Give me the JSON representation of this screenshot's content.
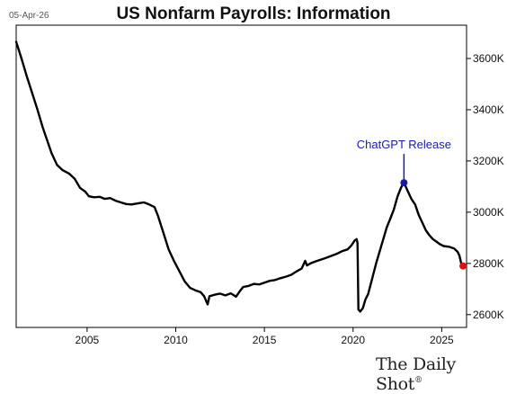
{
  "header": {
    "date": "05-Apr-26",
    "title": "US Nonfarm Payrolls: Information"
  },
  "footer": {
    "brand": "The Daily Shot",
    "brand_mark": "®"
  },
  "colors": {
    "line": "#000000",
    "annotation": "#1a1aa8",
    "last_point": "#e01010",
    "frame": "#000000",
    "background": "#ffffff"
  },
  "chart_data": {
    "type": "line",
    "title": "US Nonfarm Payrolls: Information",
    "xlabel": "",
    "ylabel": "",
    "x_ticks": [
      2005,
      2010,
      2015,
      2020,
      2025
    ],
    "y_ticks": [
      {
        "value": 2600,
        "label": "2600K"
      },
      {
        "value": 2800,
        "label": "2800K"
      },
      {
        "value": 3000,
        "label": "3000K"
      },
      {
        "value": 3200,
        "label": "3200K"
      },
      {
        "value": 3400,
        "label": "3400K"
      },
      {
        "value": 3600,
        "label": "3600K"
      }
    ],
    "xlim": [
      2001.0,
      2026.4
    ],
    "ylim": [
      2550,
      3730
    ],
    "y_axis_side": "right",
    "grid": false,
    "series": [
      {
        "points": [
          [
            2001.0,
            3665
          ],
          [
            2001.3,
            3600
          ],
          [
            2001.6,
            3530
          ],
          [
            2001.9,
            3465
          ],
          [
            2002.2,
            3400
          ],
          [
            2002.5,
            3330
          ],
          [
            2002.8,
            3270
          ],
          [
            2003.0,
            3230
          ],
          [
            2003.3,
            3185
          ],
          [
            2003.6,
            3165
          ],
          [
            2004.0,
            3150
          ],
          [
            2004.3,
            3130
          ],
          [
            2004.6,
            3095
          ],
          [
            2004.9,
            3080
          ],
          [
            2005.1,
            3062
          ],
          [
            2005.4,
            3058
          ],
          [
            2005.7,
            3060
          ],
          [
            2006.0,
            3052
          ],
          [
            2006.3,
            3055
          ],
          [
            2006.6,
            3045
          ],
          [
            2006.9,
            3038
          ],
          [
            2007.2,
            3032
          ],
          [
            2007.5,
            3030
          ],
          [
            2007.9,
            3035
          ],
          [
            2008.2,
            3038
          ],
          [
            2008.5,
            3030
          ],
          [
            2008.8,
            3020
          ],
          [
            2009.0,
            2985
          ],
          [
            2009.3,
            2920
          ],
          [
            2009.6,
            2855
          ],
          [
            2009.9,
            2810
          ],
          [
            2010.2,
            2770
          ],
          [
            2010.5,
            2730
          ],
          [
            2010.8,
            2705
          ],
          [
            2011.1,
            2695
          ],
          [
            2011.4,
            2688
          ],
          [
            2011.6,
            2672
          ],
          [
            2011.7,
            2655
          ],
          [
            2011.8,
            2640
          ],
          [
            2011.9,
            2672
          ],
          [
            2012.2,
            2678
          ],
          [
            2012.5,
            2682
          ],
          [
            2012.8,
            2675
          ],
          [
            2013.1,
            2683
          ],
          [
            2013.4,
            2670
          ],
          [
            2013.6,
            2690
          ],
          [
            2013.8,
            2708
          ],
          [
            2014.1,
            2712
          ],
          [
            2014.4,
            2720
          ],
          [
            2014.7,
            2718
          ],
          [
            2015.0,
            2725
          ],
          [
            2015.3,
            2732
          ],
          [
            2015.6,
            2735
          ],
          [
            2015.9,
            2742
          ],
          [
            2016.2,
            2748
          ],
          [
            2016.5,
            2755
          ],
          [
            2016.8,
            2768
          ],
          [
            2017.1,
            2780
          ],
          [
            2017.3,
            2810
          ],
          [
            2017.4,
            2792
          ],
          [
            2017.6,
            2800
          ],
          [
            2017.9,
            2808
          ],
          [
            2018.2,
            2815
          ],
          [
            2018.5,
            2822
          ],
          [
            2018.8,
            2830
          ],
          [
            2019.1,
            2838
          ],
          [
            2019.4,
            2848
          ],
          [
            2019.7,
            2855
          ],
          [
            2019.9,
            2870
          ],
          [
            2020.1,
            2890
          ],
          [
            2020.2,
            2895
          ],
          [
            2020.25,
            2880
          ],
          [
            2020.3,
            2620
          ],
          [
            2020.4,
            2612
          ],
          [
            2020.55,
            2625
          ],
          [
            2020.7,
            2660
          ],
          [
            2020.85,
            2680
          ],
          [
            2021.0,
            2720
          ],
          [
            2021.3,
            2800
          ],
          [
            2021.6,
            2870
          ],
          [
            2021.9,
            2940
          ],
          [
            2022.1,
            2975
          ],
          [
            2022.3,
            3010
          ],
          [
            2022.5,
            3060
          ],
          [
            2022.7,
            3095
          ],
          [
            2022.87,
            3115
          ],
          [
            2023.1,
            3080
          ],
          [
            2023.3,
            3050
          ],
          [
            2023.5,
            3030
          ],
          [
            2023.7,
            2990
          ],
          [
            2023.9,
            2960
          ],
          [
            2024.1,
            2930
          ],
          [
            2024.3,
            2910
          ],
          [
            2024.5,
            2895
          ],
          [
            2024.7,
            2885
          ],
          [
            2024.9,
            2875
          ],
          [
            2025.1,
            2868
          ],
          [
            2025.4,
            2865
          ],
          [
            2025.7,
            2858
          ],
          [
            2025.9,
            2845
          ],
          [
            2026.0,
            2830
          ],
          [
            2026.1,
            2800
          ],
          [
            2026.2,
            2790
          ]
        ]
      }
    ],
    "annotations": [
      {
        "label": "ChatGPT Release",
        "x": 2022.87,
        "y": 3115
      }
    ],
    "last_point": {
      "x": 2026.2,
      "y": 2790
    }
  }
}
